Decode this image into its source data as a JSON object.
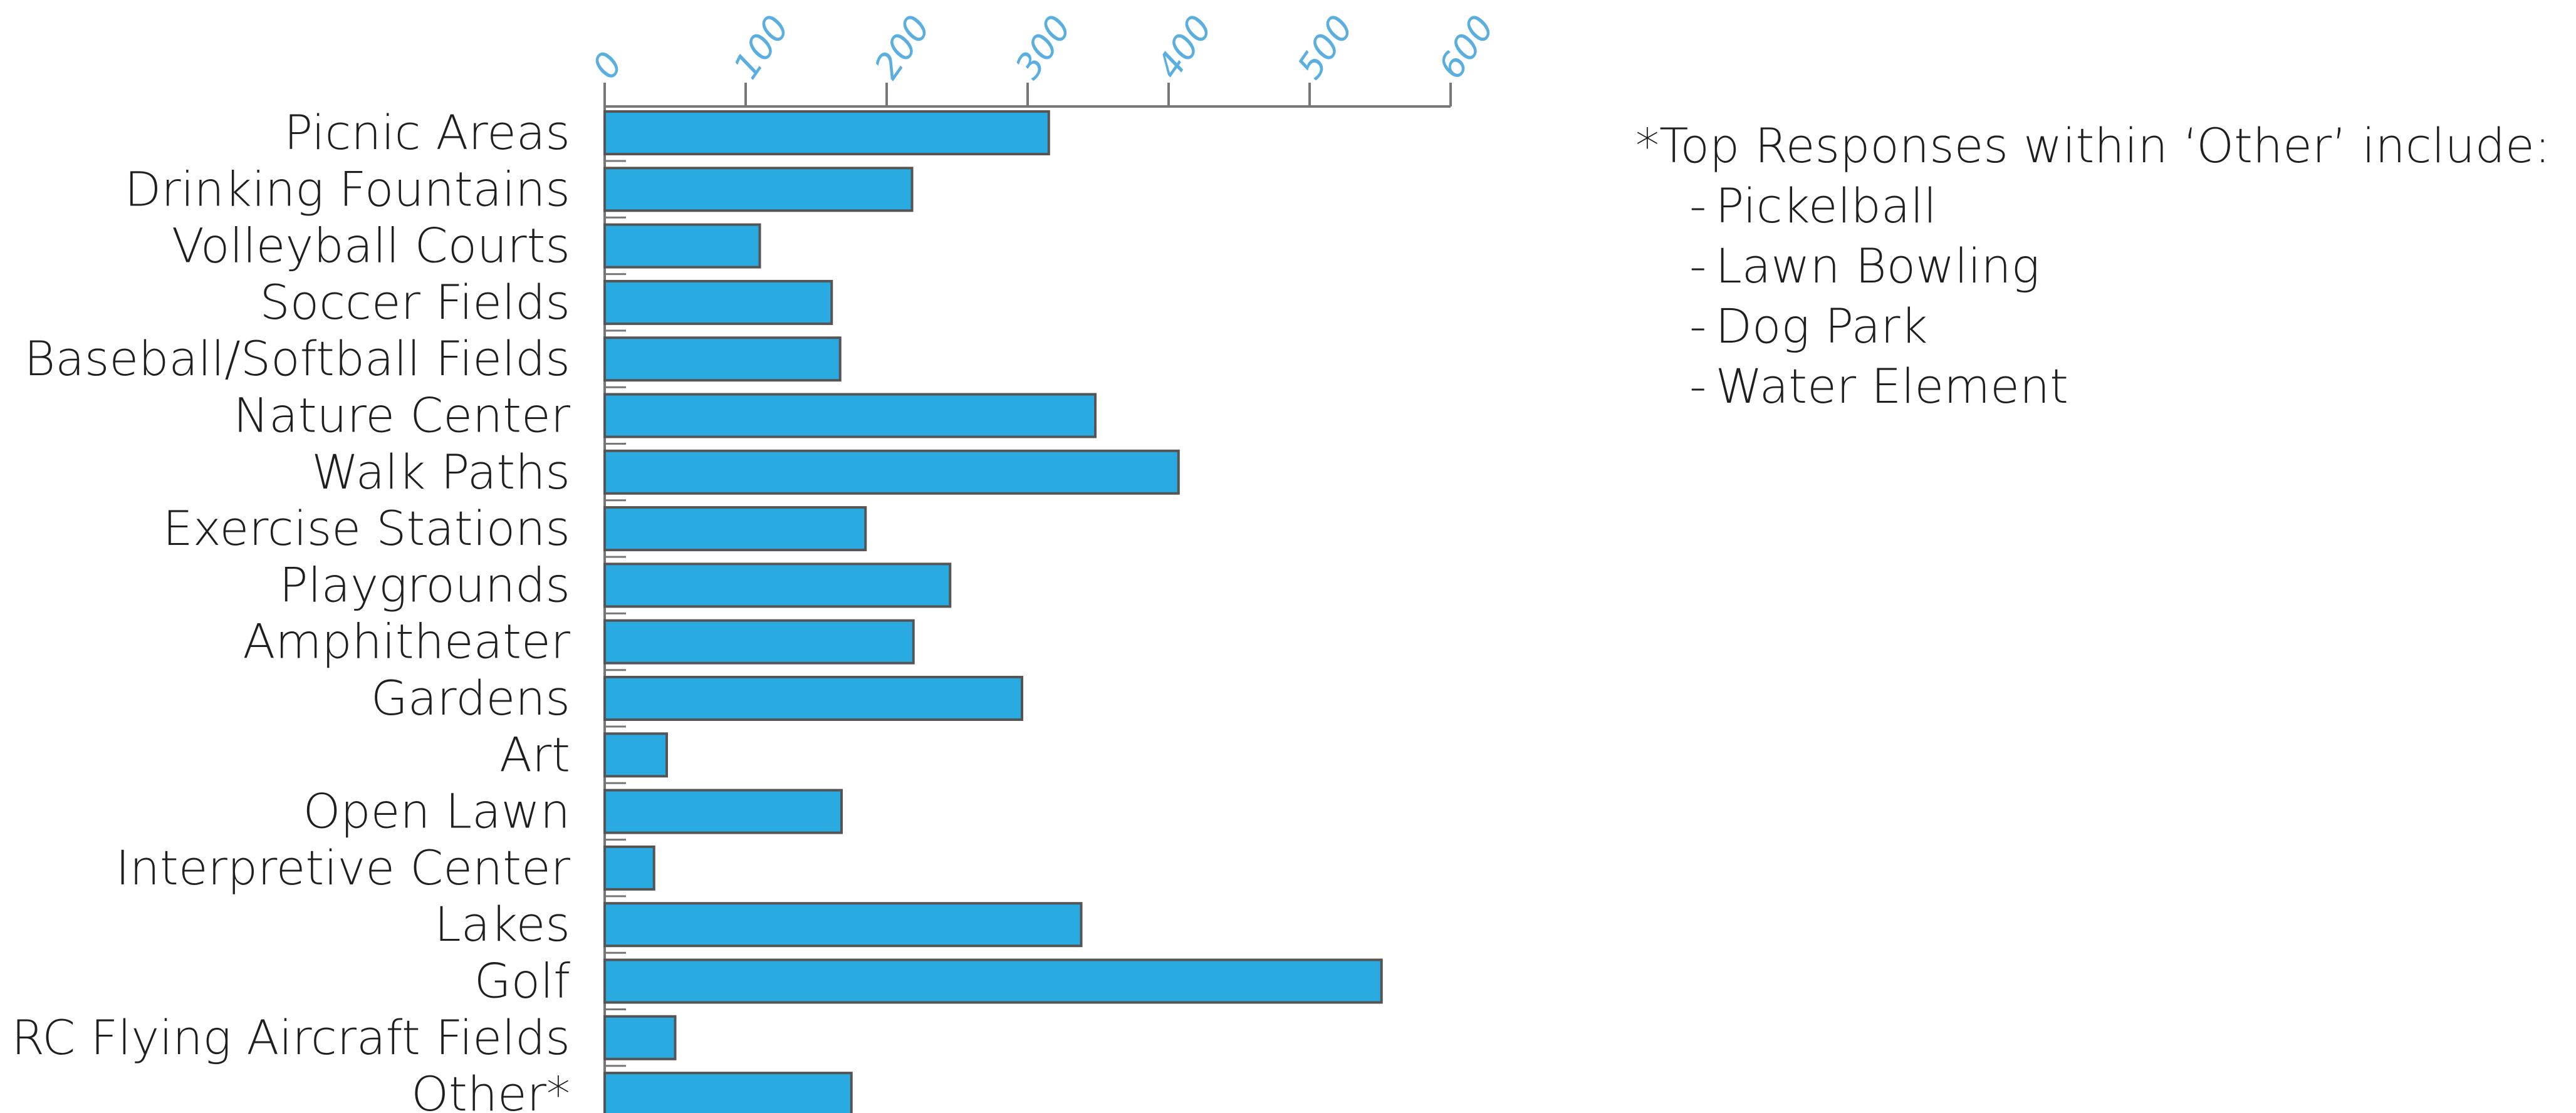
{
  "chart_data": {
    "type": "bar",
    "orientation": "horizontal",
    "categories": [
      "Picnic Areas",
      "Drinking Fountains",
      "Volleyball Courts",
      "Soccer Fields",
      "Baseball/Softball Fields",
      "Nature Center",
      "Walk Paths",
      "Exercise Stations",
      "Playgrounds",
      "Amphitheater",
      "Gardens",
      "Art",
      "Open Lawn",
      "Interpretive Center",
      "Lakes",
      "Golf",
      "RC Flying Aircraft Fields",
      "Other*"
    ],
    "values": [
      315,
      218,
      110,
      161,
      167,
      348,
      407,
      185,
      245,
      219,
      296,
      44,
      168,
      35,
      338,
      551,
      50,
      175
    ],
    "xlim": [
      0,
      600
    ],
    "xticks": [
      "0",
      "100",
      "200",
      "300",
      "400",
      "500",
      "600"
    ],
    "xaxis_position": "top",
    "title": "",
    "xlabel": "",
    "ylabel": "",
    "grid": false,
    "legend": "none"
  },
  "colors": {
    "bar_fill": "#29abe2",
    "bar_stroke": "#555555",
    "tick_label": "#5aaee0",
    "axis": "#777777",
    "text": "#1f1f1f"
  },
  "note": {
    "heading": "*Top Responses within ‘Other’ include:",
    "items": [
      "Pickelball",
      "Lawn Bowling",
      "Dog Park",
      "Water Element"
    ],
    "bullet": "-"
  }
}
